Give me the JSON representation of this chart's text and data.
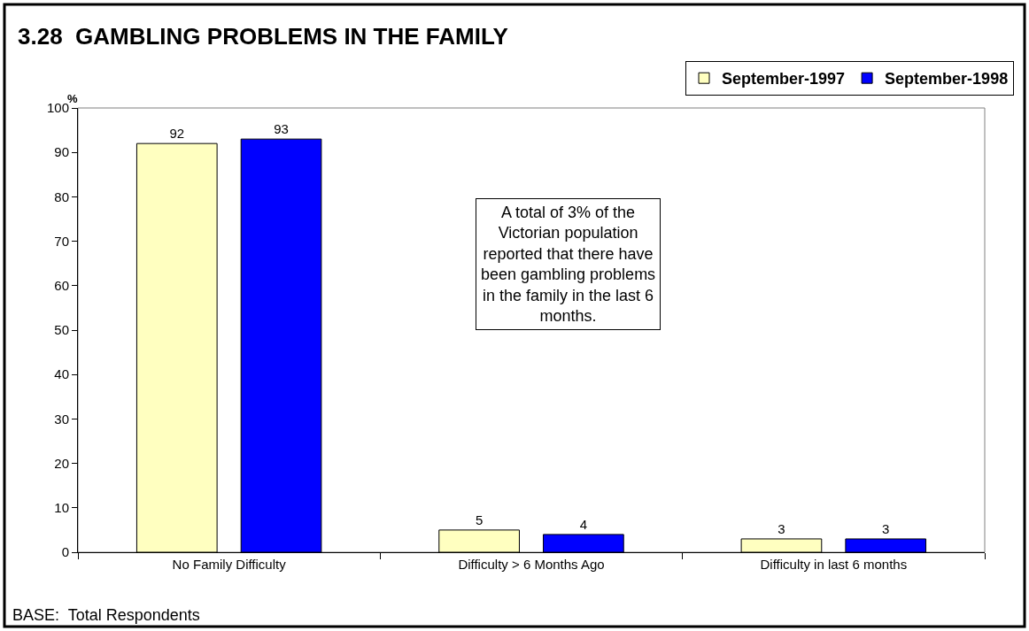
{
  "chart_data": {
    "type": "bar",
    "title": "3.28  GAMBLING PROBLEMS IN THE FAMILY",
    "ylabel": "%",
    "categories": [
      "No Family Difficulty",
      "Difficulty > 6 Months Ago",
      "Difficulty in last 6 months"
    ],
    "series": [
      {
        "name": "September-1997",
        "color": "#ffffc0",
        "values": [
          92,
          5,
          3
        ]
      },
      {
        "name": "September-1998",
        "color": "#0000ff",
        "values": [
          93,
          4,
          3
        ]
      }
    ],
    "ylim": [
      0,
      100
    ],
    "yticks": [
      0,
      10,
      20,
      30,
      40,
      50,
      60,
      70,
      80,
      90,
      100
    ],
    "data_labels": true,
    "legend": "top right",
    "grid": false,
    "annotations": [
      "A total of 3% of the\nVictorian population\nreported that there have\nbeen gambling problems\nin the family in the last 6\nmonths.",
      "BASE:  Total Respondents"
    ]
  }
}
